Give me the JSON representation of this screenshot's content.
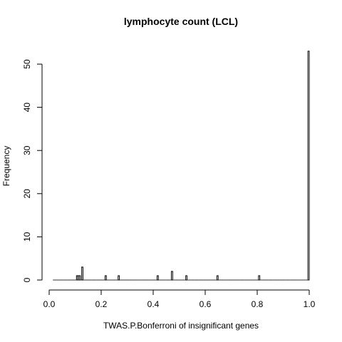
{
  "chart_data": {
    "type": "bar",
    "title": "lymphocyte count (LCL)",
    "xlabel": "TWAS.P.Bonferroni of insignificant genes",
    "ylabel": "Frequency",
    "xlim": [
      0.0,
      1.0
    ],
    "ylim": [
      0,
      53
    ],
    "bin_width": 0.005,
    "x_ticks": [
      "0.0",
      "0.2",
      "0.4",
      "0.6",
      "0.8",
      "1.0"
    ],
    "x_tick_values": [
      0.0,
      0.2,
      0.4,
      0.6,
      0.8,
      1.0
    ],
    "y_ticks": [
      "0",
      "10",
      "20",
      "30",
      "40",
      "50"
    ],
    "y_tick_values": [
      0,
      10,
      20,
      30,
      40,
      50
    ],
    "grid": false,
    "legend": "none",
    "bars": [
      {
        "x0": 0.105,
        "x1": 0.11,
        "value": 1
      },
      {
        "x0": 0.11,
        "x1": 0.115,
        "value": 1
      },
      {
        "x0": 0.115,
        "x1": 0.12,
        "value": 1
      },
      {
        "x0": 0.125,
        "x1": 0.13,
        "value": 3
      },
      {
        "x0": 0.215,
        "x1": 0.22,
        "value": 1
      },
      {
        "x0": 0.265,
        "x1": 0.27,
        "value": 1
      },
      {
        "x0": 0.415,
        "x1": 0.42,
        "value": 1
      },
      {
        "x0": 0.47,
        "x1": 0.475,
        "value": 2
      },
      {
        "x0": 0.525,
        "x1": 0.53,
        "value": 1
      },
      {
        "x0": 0.645,
        "x1": 0.65,
        "value": 1
      },
      {
        "x0": 0.805,
        "x1": 0.81,
        "value": 1
      },
      {
        "x0": 0.995,
        "x1": 1.0,
        "value": 53
      }
    ],
    "baseline_range": [
      0.015,
      1.0
    ],
    "bar_fill": "#ffffff",
    "bar_stroke": "#000000"
  }
}
